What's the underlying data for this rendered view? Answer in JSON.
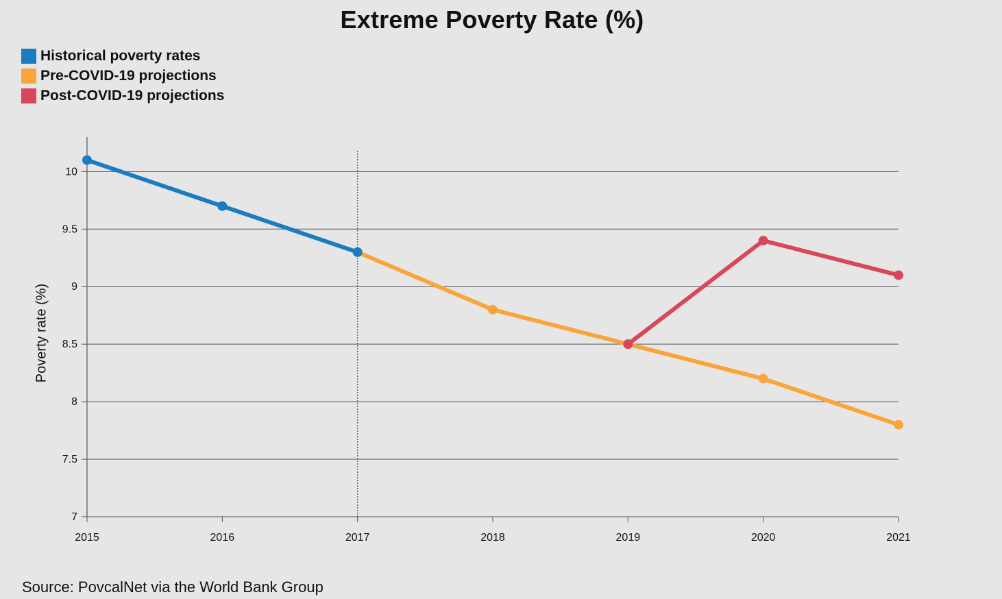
{
  "chart_data": {
    "type": "line",
    "title": "Extreme Poverty Rate (%)",
    "xlabel": "",
    "ylabel": "Poverty rate (%)",
    "x": [
      2015,
      2016,
      2017,
      2018,
      2019,
      2020,
      2021
    ],
    "ylim": [
      7,
      10.3
    ],
    "yticks": [
      7,
      7.5,
      8,
      8.5,
      9,
      9.5,
      10
    ],
    "ytick_labels": [
      "7",
      "7.5",
      "8",
      "8.5",
      "9",
      "9.5",
      "10"
    ],
    "xtick_labels": [
      "2015",
      "2016",
      "2017",
      "2018",
      "2019",
      "2020",
      "2021"
    ],
    "grid": "horizontal",
    "legend_position": "top-left",
    "series": [
      {
        "name": "Historical poverty rates",
        "color": "#1a7cc1",
        "points": [
          [
            2015,
            10.1
          ],
          [
            2016,
            9.7
          ],
          [
            2017,
            9.3
          ]
        ]
      },
      {
        "name": "Pre-COVID-19 projections",
        "color": "#f9a53b",
        "points": [
          [
            2017,
            9.3
          ],
          [
            2018,
            8.8
          ],
          [
            2019,
            8.5
          ],
          [
            2020,
            8.2
          ],
          [
            2021,
            7.8
          ]
        ]
      },
      {
        "name": "Post-COVID-19 projections",
        "color": "#d8475a",
        "points": [
          [
            2019,
            8.5
          ],
          [
            2020,
            9.4
          ],
          [
            2021,
            9.1
          ]
        ]
      }
    ],
    "vertical_marker_x": 2017
  },
  "source": "Source: PovcalNet via the World Bank Group"
}
